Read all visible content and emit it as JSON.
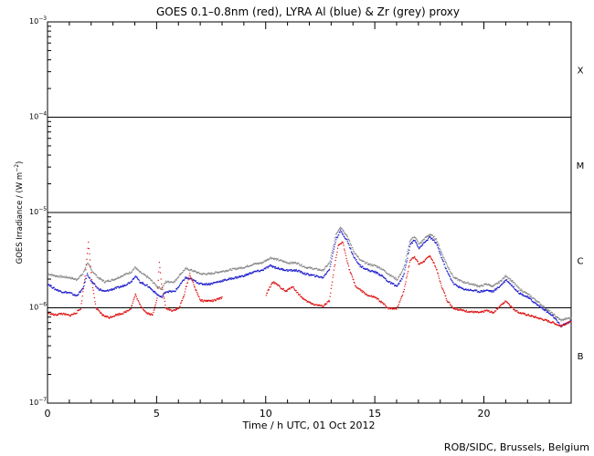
{
  "chart_data": {
    "type": "line",
    "title": "GOES 0.1–0.8nm (red), LYRA Al (blue) & Zr (grey) proxy",
    "xlabel": "Time / h UTC, 01 Oct 2012",
    "ylabel_prefix": "GOES Irradiance / (W m",
    "ylabel_exp": "−2",
    "ylabel_suffix": ")",
    "xlim": [
      0,
      24
    ],
    "ylim_log10": [
      -7,
      -3
    ],
    "y_scale": "log",
    "x_ticks": [
      0,
      5,
      10,
      15,
      20
    ],
    "y_ticks": [
      {
        "log": -7,
        "label": "10",
        "exp": "−7"
      },
      {
        "log": -6,
        "label": "10",
        "exp": "−6"
      },
      {
        "log": -5,
        "label": "10",
        "exp": "−5"
      },
      {
        "log": -4,
        "label": "10",
        "exp": "−4"
      },
      {
        "log": -3,
        "label": "10",
        "exp": "−3"
      }
    ],
    "class_lines_log10": [
      -6,
      -5,
      -4
    ],
    "flare_classes": [
      {
        "label": "B",
        "log": -6.5
      },
      {
        "label": "C",
        "log": -5.5
      },
      {
        "label": "M",
        "log": -4.5
      },
      {
        "label": "X",
        "log": -3.5
      }
    ],
    "series": [
      {
        "name": "Zr proxy",
        "color": "#888888",
        "points": [
          [
            0.0,
            2.3e-06
          ],
          [
            0.3,
            2.2e-06
          ],
          [
            0.6,
            2.15e-06
          ],
          [
            1.0,
            2.1e-06
          ],
          [
            1.3,
            2e-06
          ],
          [
            1.6,
            2.3e-06
          ],
          [
            1.8,
            3e-06
          ],
          [
            2.0,
            2.5e-06
          ],
          [
            2.3,
            2.1e-06
          ],
          [
            2.6,
            1.9e-06
          ],
          [
            3.0,
            2e-06
          ],
          [
            3.4,
            2.2e-06
          ],
          [
            3.8,
            2.4e-06
          ],
          [
            4.0,
            2.7e-06
          ],
          [
            4.2,
            2.4e-06
          ],
          [
            4.6,
            2.1e-06
          ],
          [
            5.0,
            1.7e-06
          ],
          [
            5.2,
            1.6e-06
          ],
          [
            5.4,
            1.9e-06
          ],
          [
            5.8,
            1.9e-06
          ],
          [
            6.0,
            2.2e-06
          ],
          [
            6.3,
            2.6e-06
          ],
          [
            6.6,
            2.5e-06
          ],
          [
            7.0,
            2.3e-06
          ],
          [
            7.4,
            2.3e-06
          ],
          [
            7.8,
            2.4e-06
          ],
          [
            8.2,
            2.5e-06
          ],
          [
            8.6,
            2.6e-06
          ],
          [
            9.0,
            2.7e-06
          ],
          [
            9.4,
            2.9e-06
          ],
          [
            9.8,
            3e-06
          ],
          [
            10.2,
            3.4e-06
          ],
          [
            10.6,
            3.2e-06
          ],
          [
            11.0,
            3e-06
          ],
          [
            11.4,
            3e-06
          ],
          [
            11.8,
            2.7e-06
          ],
          [
            12.2,
            2.6e-06
          ],
          [
            12.6,
            2.5e-06
          ],
          [
            12.9,
            3e-06
          ],
          [
            13.2,
            6e-06
          ],
          [
            13.4,
            7.2e-06
          ],
          [
            13.7,
            5.8e-06
          ],
          [
            14.0,
            4e-06
          ],
          [
            14.3,
            3.2e-06
          ],
          [
            14.7,
            2.9e-06
          ],
          [
            15.0,
            2.8e-06
          ],
          [
            15.3,
            2.6e-06
          ],
          [
            15.6,
            2.3e-06
          ],
          [
            16.0,
            2e-06
          ],
          [
            16.3,
            2.6e-06
          ],
          [
            16.6,
            5.2e-06
          ],
          [
            16.8,
            5.7e-06
          ],
          [
            17.0,
            4.7e-06
          ],
          [
            17.3,
            5.5e-06
          ],
          [
            17.5,
            6e-06
          ],
          [
            17.8,
            5.3e-06
          ],
          [
            18.0,
            4e-06
          ],
          [
            18.3,
            2.8e-06
          ],
          [
            18.6,
            2.1e-06
          ],
          [
            19.0,
            1.9e-06
          ],
          [
            19.4,
            1.8e-06
          ],
          [
            19.8,
            1.7e-06
          ],
          [
            20.1,
            1.8e-06
          ],
          [
            20.4,
            1.7e-06
          ],
          [
            20.7,
            1.9e-06
          ],
          [
            21.0,
            2.2e-06
          ],
          [
            21.3,
            1.9e-06
          ],
          [
            21.6,
            1.6e-06
          ],
          [
            22.0,
            1.4e-06
          ],
          [
            22.4,
            1.2e-06
          ],
          [
            22.8,
            1e-06
          ],
          [
            23.2,
            8.5e-07
          ],
          [
            23.5,
            7.5e-07
          ],
          [
            23.8,
            7.8e-07
          ],
          [
            24.0,
            8e-07
          ]
        ]
      },
      {
        "name": "Al proxy",
        "color": "#1a1acc",
        "points": [
          [
            0.0,
            1.8e-06
          ],
          [
            0.3,
            1.6e-06
          ],
          [
            0.6,
            1.5e-06
          ],
          [
            1.0,
            1.45e-06
          ],
          [
            1.3,
            1.35e-06
          ],
          [
            1.6,
            1.6e-06
          ],
          [
            1.8,
            2.3e-06
          ],
          [
            2.0,
            1.9e-06
          ],
          [
            2.3,
            1.6e-06
          ],
          [
            2.6,
            1.5e-06
          ],
          [
            3.0,
            1.6e-06
          ],
          [
            3.4,
            1.7e-06
          ],
          [
            3.8,
            1.9e-06
          ],
          [
            4.0,
            2.2e-06
          ],
          [
            4.2,
            1.9e-06
          ],
          [
            4.6,
            1.7e-06
          ],
          [
            5.0,
            1.4e-06
          ],
          [
            5.2,
            1.3e-06
          ],
          [
            5.4,
            1.5e-06
          ],
          [
            5.8,
            1.5e-06
          ],
          [
            6.0,
            1.7e-06
          ],
          [
            6.3,
            2.1e-06
          ],
          [
            6.6,
            2e-06
          ],
          [
            7.0,
            1.8e-06
          ],
          [
            7.4,
            1.8e-06
          ],
          [
            7.8,
            1.9e-06
          ],
          [
            8.2,
            2e-06
          ],
          [
            8.6,
            2.1e-06
          ],
          [
            9.0,
            2.2e-06
          ],
          [
            9.4,
            2.4e-06
          ],
          [
            9.8,
            2.5e-06
          ],
          [
            10.2,
            2.8e-06
          ],
          [
            10.6,
            2.6e-06
          ],
          [
            11.0,
            2.5e-06
          ],
          [
            11.4,
            2.5e-06
          ],
          [
            11.8,
            2.3e-06
          ],
          [
            12.2,
            2.2e-06
          ],
          [
            12.6,
            2.1e-06
          ],
          [
            12.9,
            2.6e-06
          ],
          [
            13.2,
            5.3e-06
          ],
          [
            13.4,
            6.5e-06
          ],
          [
            13.7,
            5.2e-06
          ],
          [
            14.0,
            3.5e-06
          ],
          [
            14.3,
            2.8e-06
          ],
          [
            14.7,
            2.5e-06
          ],
          [
            15.0,
            2.4e-06
          ],
          [
            15.3,
            2.2e-06
          ],
          [
            15.6,
            1.9e-06
          ],
          [
            16.0,
            1.7e-06
          ],
          [
            16.3,
            2.2e-06
          ],
          [
            16.6,
            4.7e-06
          ],
          [
            16.8,
            5.2e-06
          ],
          [
            17.0,
            4.3e-06
          ],
          [
            17.3,
            5e-06
          ],
          [
            17.5,
            5.6e-06
          ],
          [
            17.8,
            4.8e-06
          ],
          [
            18.0,
            3.6e-06
          ],
          [
            18.3,
            2.4e-06
          ],
          [
            18.6,
            1.8e-06
          ],
          [
            19.0,
            1.6e-06
          ],
          [
            19.4,
            1.55e-06
          ],
          [
            19.8,
            1.5e-06
          ],
          [
            20.1,
            1.55e-06
          ],
          [
            20.4,
            1.5e-06
          ],
          [
            20.7,
            1.7e-06
          ],
          [
            21.0,
            2e-06
          ],
          [
            21.3,
            1.7e-06
          ],
          [
            21.6,
            1.45e-06
          ],
          [
            22.0,
            1.3e-06
          ],
          [
            22.4,
            1.1e-06
          ],
          [
            22.8,
            9.5e-07
          ],
          [
            23.2,
            8e-07
          ],
          [
            23.5,
            6.5e-07
          ],
          [
            23.8,
            7e-07
          ],
          [
            24.0,
            7.5e-07
          ]
        ]
      },
      {
        "name": "GOES 0.1–0.8nm",
        "color": "#dd1111",
        "points": [
          [
            0.0,
            9e-07
          ],
          [
            0.3,
            8.5e-07
          ],
          [
            0.6,
            8.8e-07
          ],
          [
            1.0,
            8.4e-07
          ],
          [
            1.3,
            9e-07
          ],
          [
            1.5,
            1e-06
          ],
          [
            1.7,
            2.2e-06
          ],
          [
            1.85,
            5e-06
          ],
          [
            2.0,
            2e-06
          ],
          [
            2.2,
            1e-06
          ],
          [
            2.5,
            8.5e-07
          ],
          [
            2.8,
            8e-07
          ],
          [
            3.1,
            8.5e-07
          ],
          [
            3.5,
            9e-07
          ],
          [
            3.8,
            1e-06
          ],
          [
            4.0,
            1.4e-06
          ],
          [
            4.2,
            1.1e-06
          ],
          [
            4.5,
            9e-07
          ],
          [
            4.8,
            8.5e-07
          ],
          [
            5.0,
            1.3e-06
          ],
          [
            5.1,
            3e-06
          ],
          [
            5.2,
            1.8e-06
          ],
          [
            5.4,
            1e-06
          ],
          [
            5.7,
            9.5e-07
          ],
          [
            6.0,
            1e-06
          ],
          [
            6.2,
            1.3e-06
          ],
          [
            6.5,
            2.3e-06
          ],
          [
            6.7,
            1.7e-06
          ],
          [
            7.0,
            1.2e-06
          ],
          [
            7.3,
            1.2e-06
          ],
          [
            7.6,
            1.2e-06
          ],
          [
            8.0,
            1.3e-06
          ],
          [
            10.0,
            1.4e-06
          ],
          [
            10.3,
            1.9e-06
          ],
          [
            10.6,
            1.7e-06
          ],
          [
            10.9,
            1.5e-06
          ],
          [
            11.2,
            1.7e-06
          ],
          [
            11.5,
            1.4e-06
          ],
          [
            11.8,
            1.2e-06
          ],
          [
            12.2,
            1.1e-06
          ],
          [
            12.6,
            1.05e-06
          ],
          [
            12.9,
            1.2e-06
          ],
          [
            13.1,
            2.5e-06
          ],
          [
            13.3,
            4.5e-06
          ],
          [
            13.5,
            5e-06
          ],
          [
            13.8,
            2.6e-06
          ],
          [
            14.1,
            1.7e-06
          ],
          [
            14.4,
            1.5e-06
          ],
          [
            14.7,
            1.35e-06
          ],
          [
            15.0,
            1.3e-06
          ],
          [
            15.3,
            1.15e-06
          ],
          [
            15.6,
            1e-06
          ],
          [
            16.0,
            1e-06
          ],
          [
            16.3,
            1.5e-06
          ],
          [
            16.6,
            3.2e-06
          ],
          [
            16.8,
            3.5e-06
          ],
          [
            17.0,
            2.9e-06
          ],
          [
            17.3,
            3.2e-06
          ],
          [
            17.5,
            3.6e-06
          ],
          [
            17.8,
            2.6e-06
          ],
          [
            18.0,
            1.8e-06
          ],
          [
            18.3,
            1.2e-06
          ],
          [
            18.6,
            1e-06
          ],
          [
            19.0,
            9.5e-07
          ],
          [
            19.4,
            9.2e-07
          ],
          [
            19.8,
            9e-07
          ],
          [
            20.1,
            9.5e-07
          ],
          [
            20.4,
            9e-07
          ],
          [
            20.7,
            1.05e-06
          ],
          [
            21.0,
            1.2e-06
          ],
          [
            21.3,
            1e-06
          ],
          [
            21.6,
            9e-07
          ],
          [
            22.0,
            8.5e-07
          ],
          [
            22.4,
            8e-07
          ],
          [
            22.8,
            7.5e-07
          ],
          [
            23.2,
            7e-07
          ],
          [
            23.5,
            6.5e-07
          ],
          [
            23.8,
            7e-07
          ],
          [
            24.0,
            7.2e-07
          ]
        ]
      }
    ]
  },
  "footer": {
    "credit": "ROB/SIDC, Brussels, Belgium"
  }
}
